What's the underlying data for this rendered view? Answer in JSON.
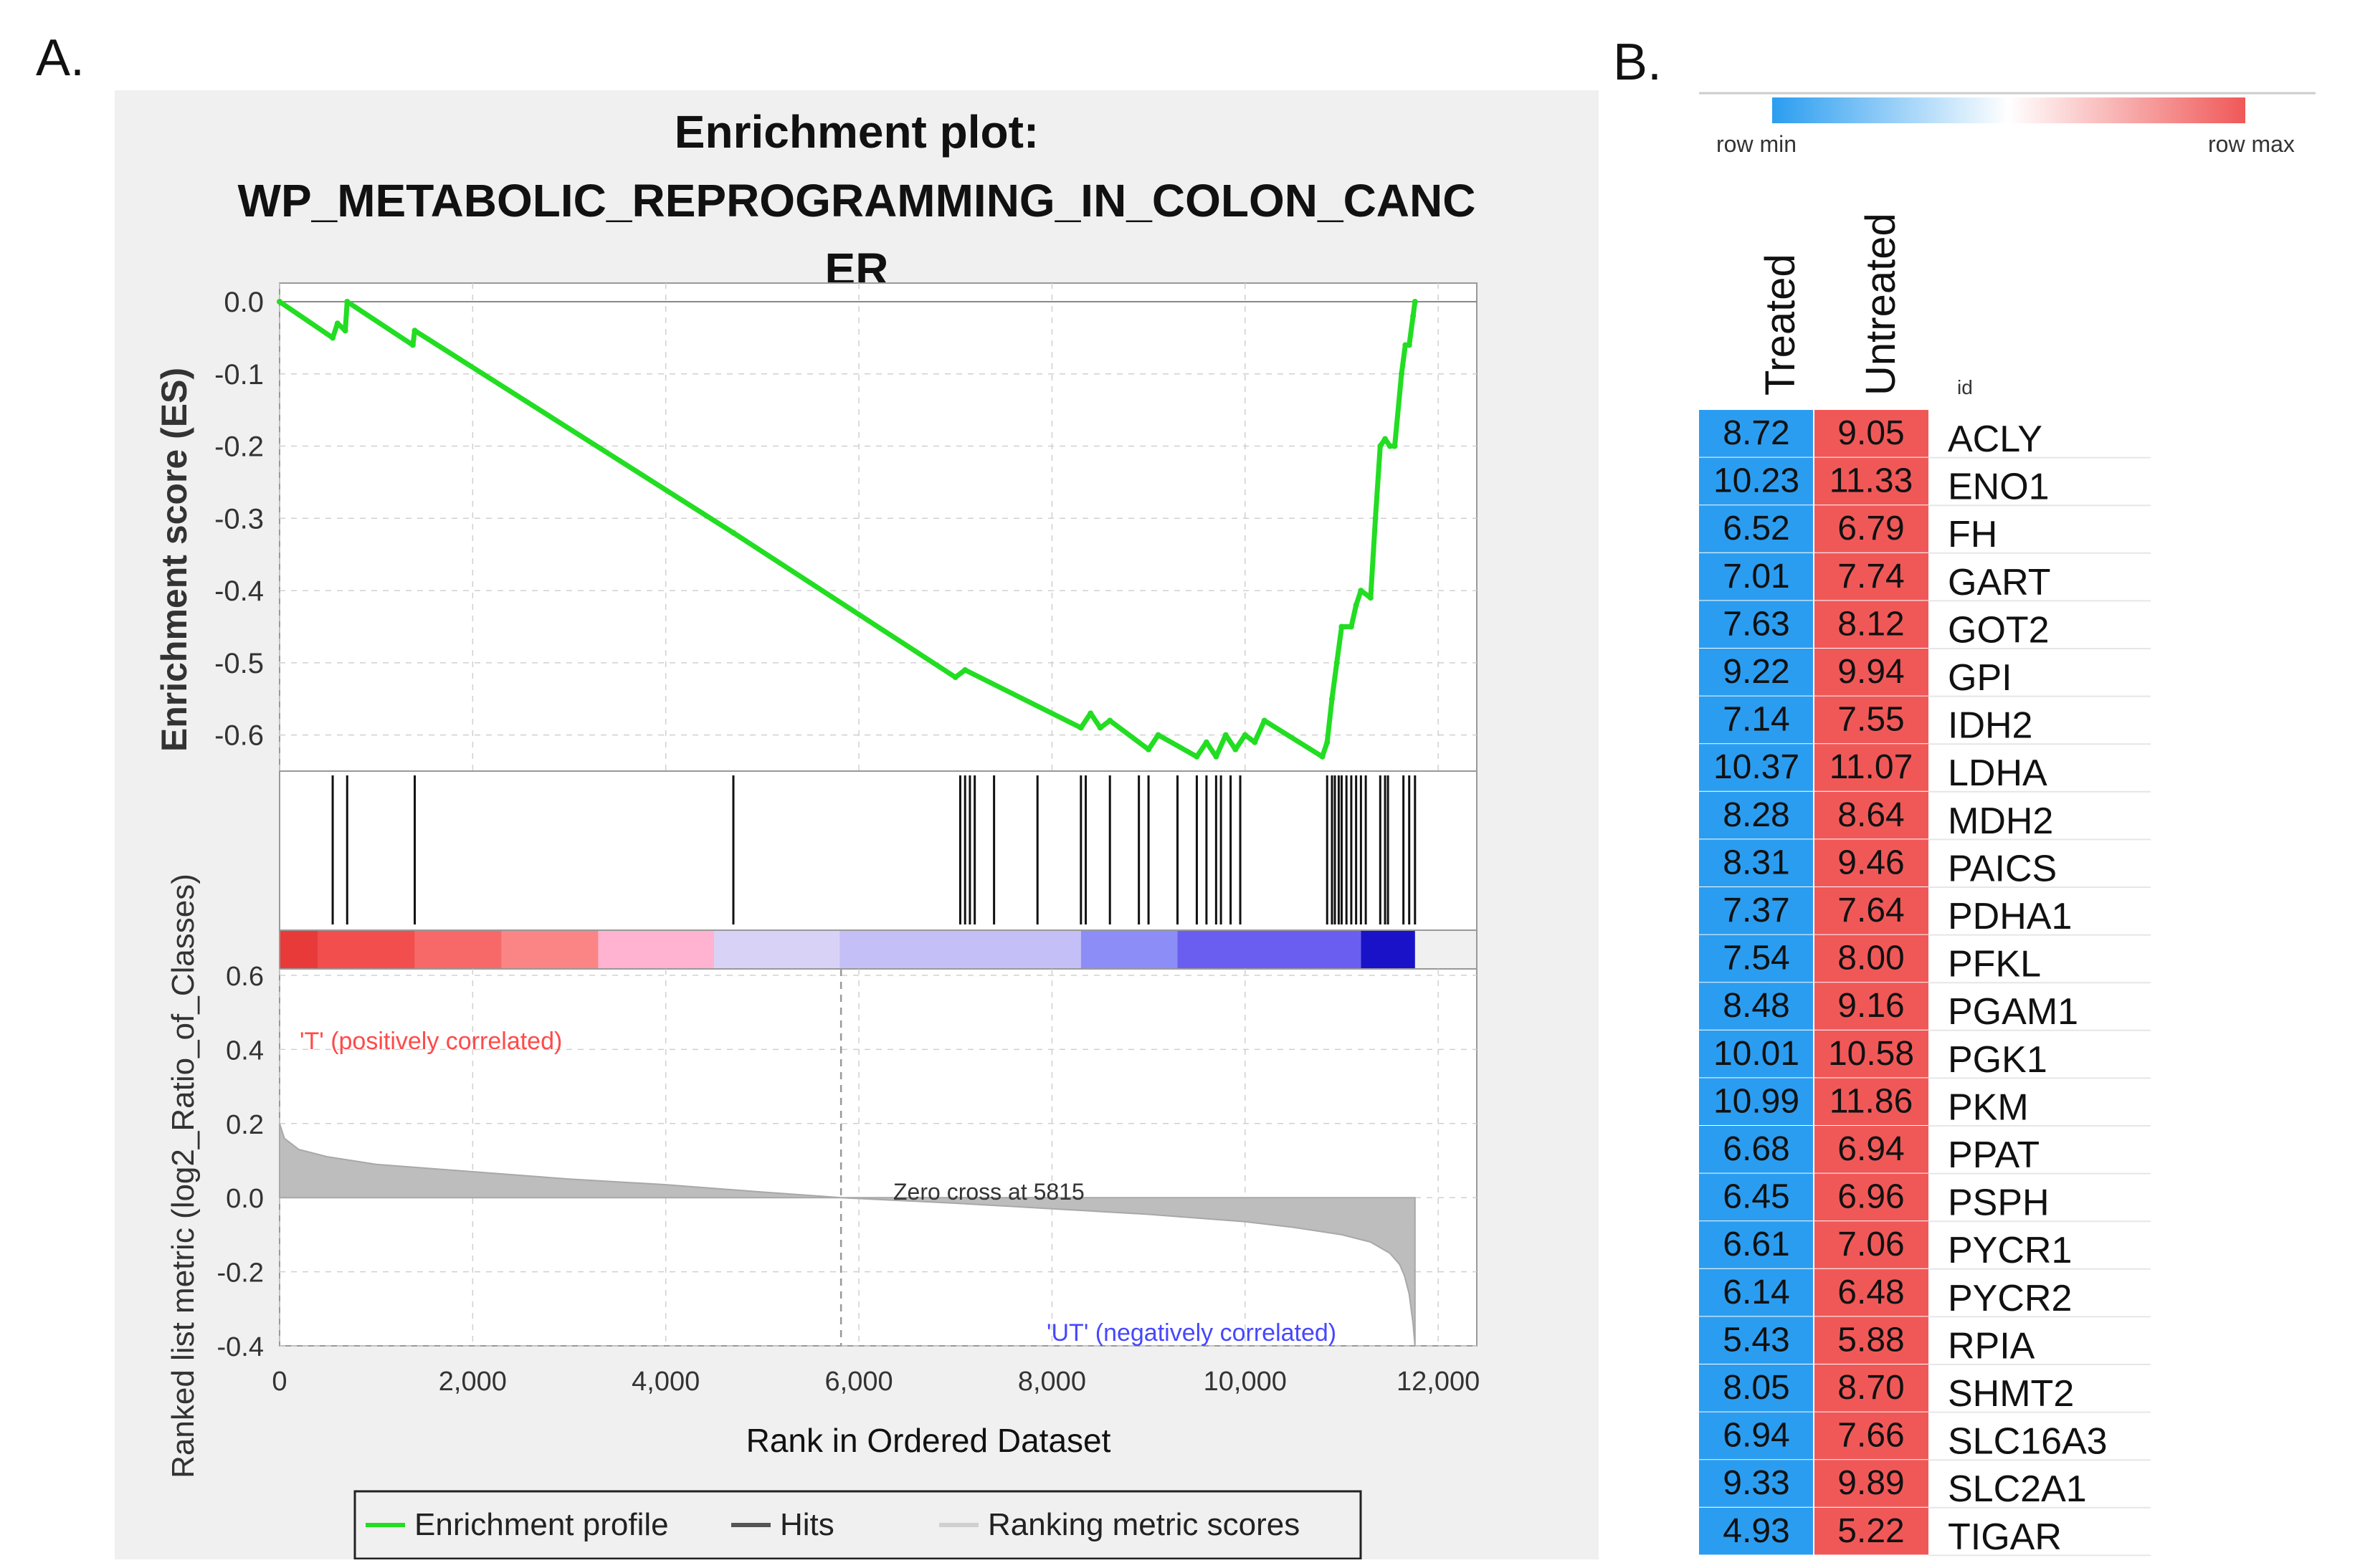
{
  "panel_a": {
    "label": "A.",
    "title_lines": [
      "Enrichment plot:",
      "WP_METABOLIC_REPROGRAMMING_IN_COLON_CANC",
      "ER"
    ]
  },
  "panel_b": {
    "label": "B."
  },
  "colors": {
    "enrichment_line": "#22dd22",
    "hit_line": "#111111",
    "metric_fill": "#bdbdbd",
    "positive_label": "#ff4a4a",
    "negative_label": "#4747ff",
    "heat_min": "#2b9df0",
    "heat_max": "#f05858"
  },
  "chart_data": [
    {
      "type": "line",
      "name": "enrichment-profile",
      "ylabel": "Enrichment score (ES)",
      "ylim": [
        -0.65,
        0.0
      ],
      "yticks": [
        "0.0",
        "-0.1",
        "-0.2",
        "-0.3",
        "-0.4",
        "-0.5",
        "-0.6"
      ],
      "ytick_values": [
        0.0,
        -0.1,
        -0.2,
        -0.3,
        -0.4,
        -0.5,
        -0.6
      ],
      "xlim": [
        0,
        12400
      ],
      "grid": true,
      "x": [
        0,
        550,
        600,
        680,
        700,
        1380,
        1400,
        4700,
        7000,
        7100,
        8300,
        8400,
        8500,
        8600,
        9000,
        9100,
        9500,
        9600,
        9700,
        9800,
        9900,
        10000,
        10100,
        10200,
        10800,
        10850,
        10900,
        10950,
        11000,
        11100,
        11150,
        11200,
        11300,
        11350,
        11400,
        11450,
        11500,
        11550,
        11620,
        11660,
        11700,
        11740,
        11760
      ],
      "y": [
        0.0,
        -0.05,
        -0.03,
        -0.04,
        0.0,
        -0.06,
        -0.04,
        -0.32,
        -0.52,
        -0.51,
        -0.59,
        -0.57,
        -0.59,
        -0.58,
        -0.62,
        -0.6,
        -0.63,
        -0.61,
        -0.63,
        -0.6,
        -0.62,
        -0.6,
        -0.61,
        -0.58,
        -0.63,
        -0.61,
        -0.55,
        -0.5,
        -0.45,
        -0.45,
        -0.42,
        -0.4,
        -0.41,
        -0.3,
        -0.2,
        -0.19,
        -0.2,
        -0.2,
        -0.1,
        -0.06,
        -0.06,
        -0.02,
        0.0
      ],
      "legend": "Enrichment profile"
    },
    {
      "type": "scatter",
      "name": "hits",
      "x": [
        550,
        700,
        1400,
        4700,
        7050,
        7100,
        7150,
        7200,
        7400,
        7850,
        8300,
        8350,
        8600,
        8900,
        9000,
        9300,
        9500,
        9600,
        9700,
        9750,
        9850,
        9950,
        10850,
        10900,
        10930,
        10970,
        11000,
        11050,
        11100,
        11150,
        11200,
        11250,
        11400,
        11450,
        11480,
        11640,
        11700,
        11760
      ],
      "legend": "Hits"
    },
    {
      "type": "area",
      "name": "ranking-metric",
      "ylabel": "Ranked list metric (log2_Ratio_of_Classes)",
      "xlabel": "Rank in Ordered Dataset",
      "ylim": [
        -0.4,
        0.6
      ],
      "yticks": [
        "0.6",
        "0.4",
        "0.2",
        "0.0",
        "-0.2",
        "-0.4"
      ],
      "ytick_values": [
        0.6,
        0.4,
        0.2,
        0.0,
        -0.2,
        -0.4
      ],
      "xticks": [
        "0",
        "2,000",
        "4,000",
        "6,000",
        "8,000",
        "10,000",
        "12,000"
      ],
      "xtick_values": [
        0,
        2000,
        4000,
        6000,
        8000,
        10000,
        12000
      ],
      "x": [
        0,
        50,
        200,
        500,
        1000,
        2000,
        3000,
        4000,
        5000,
        5815,
        7000,
        8000,
        9000,
        10000,
        10500,
        11000,
        11300,
        11500,
        11600,
        11650,
        11700,
        11740,
        11760
      ],
      "y": [
        0.2,
        0.16,
        0.13,
        0.11,
        0.09,
        0.07,
        0.05,
        0.035,
        0.015,
        0.0,
        -0.015,
        -0.03,
        -0.045,
        -0.065,
        -0.08,
        -0.1,
        -0.12,
        -0.15,
        -0.18,
        -0.21,
        -0.26,
        -0.34,
        -0.4
      ],
      "annotations": {
        "zero_cross": "Zero cross at 5815",
        "zero_cross_value": 5815,
        "positive": "'T' (positively correlated)",
        "negative": "'UT' (negatively correlated)"
      },
      "legend": "Ranking metric scores"
    },
    {
      "type": "bar",
      "name": "ranked-color-band",
      "segment_ends": [
        400,
        1400,
        2300,
        3300,
        4500,
        5800,
        8300,
        9300,
        11200,
        11760
      ],
      "colors": [
        "#e93a3a",
        "#f24e4e",
        "#f76868",
        "#fb8585",
        "#ffb3d0",
        "#d9d2f7",
        "#c4c0f7",
        "#8d8df7",
        "#6a5ef0",
        "#1a12c8"
      ]
    },
    {
      "type": "heatmap",
      "name": "expression-heatmap",
      "columns": [
        "Treated",
        "Untreated"
      ],
      "id_header": "id",
      "scale": {
        "min_label": "row min",
        "max_label": "row max"
      },
      "rows": [
        {
          "id": "ACLY",
          "treated": "8.72",
          "untreated": "9.05"
        },
        {
          "id": "ENO1",
          "treated": "10.23",
          "untreated": "11.33"
        },
        {
          "id": "FH",
          "treated": "6.52",
          "untreated": "6.79"
        },
        {
          "id": "GART",
          "treated": "7.01",
          "untreated": "7.74"
        },
        {
          "id": "GOT2",
          "treated": "7.63",
          "untreated": "8.12"
        },
        {
          "id": "GPI",
          "treated": "9.22",
          "untreated": "9.94"
        },
        {
          "id": "IDH2",
          "treated": "7.14",
          "untreated": "7.55"
        },
        {
          "id": "LDHA",
          "treated": "10.37",
          "untreated": "11.07"
        },
        {
          "id": "MDH2",
          "treated": "8.28",
          "untreated": "8.64"
        },
        {
          "id": "PAICS",
          "treated": "8.31",
          "untreated": "9.46"
        },
        {
          "id": "PDHA1",
          "treated": "7.37",
          "untreated": "7.64"
        },
        {
          "id": "PFKL",
          "treated": "7.54",
          "untreated": "8.00"
        },
        {
          "id": "PGAM1",
          "treated": "8.48",
          "untreated": "9.16"
        },
        {
          "id": "PGK1",
          "treated": "10.01",
          "untreated": "10.58"
        },
        {
          "id": "PKM",
          "treated": "10.99",
          "untreated": "11.86"
        },
        {
          "id": "PPAT",
          "treated": "6.68",
          "untreated": "6.94"
        },
        {
          "id": "PSPH",
          "treated": "6.45",
          "untreated": "6.96"
        },
        {
          "id": "PYCR1",
          "treated": "6.61",
          "untreated": "7.06"
        },
        {
          "id": "PYCR2",
          "treated": "6.14",
          "untreated": "6.48"
        },
        {
          "id": "RPIA",
          "treated": "5.43",
          "untreated": "5.88"
        },
        {
          "id": "SHMT2",
          "treated": "8.05",
          "untreated": "8.70"
        },
        {
          "id": "SLC16A3",
          "treated": "6.94",
          "untreated": "7.66"
        },
        {
          "id": "SLC2A1",
          "treated": "9.33",
          "untreated": "9.89"
        },
        {
          "id": "TIGAR",
          "treated": "4.93",
          "untreated": "5.22"
        }
      ]
    }
  ]
}
